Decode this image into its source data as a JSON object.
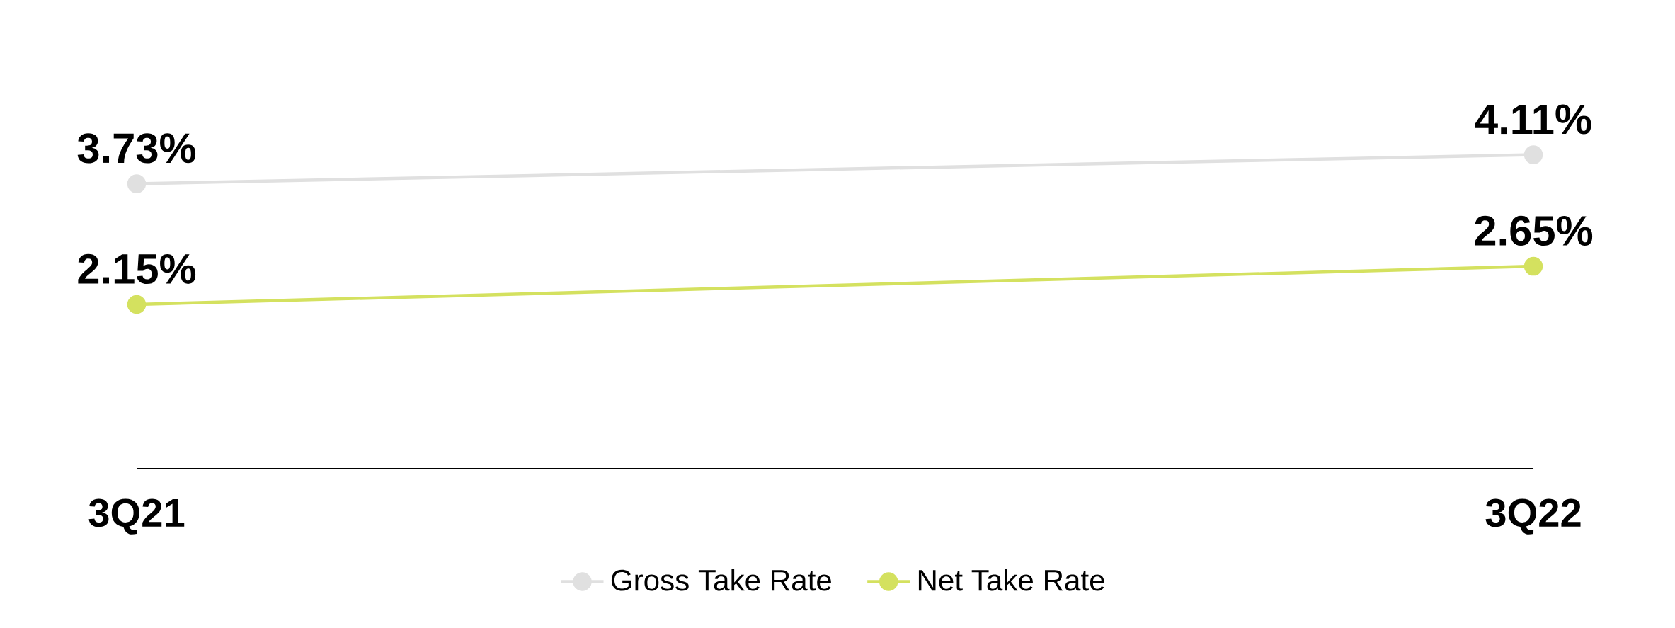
{
  "chart_data": {
    "type": "line",
    "categories": [
      "3Q21",
      "3Q22"
    ],
    "series": [
      {
        "name": "Gross Take Rate",
        "color": "#e0e0e0",
        "values": [
          3.73,
          4.11
        ],
        "value_labels": [
          "3.73%",
          "4.11%"
        ]
      },
      {
        "name": "Net Take Rate",
        "color": "#d4e15f",
        "values": [
          2.15,
          2.65
        ],
        "value_labels": [
          "2.15%",
          "2.65%"
        ]
      }
    ],
    "legend": "bottom",
    "marker": "circle",
    "line_style": "solid"
  }
}
